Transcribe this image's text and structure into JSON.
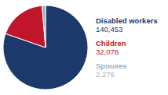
{
  "chart_data": {
    "type": "pie",
    "categories": [
      "Disabled workers",
      "Children",
      "Spouses"
    ],
    "values": [
      140453,
      32078,
      2276
    ],
    "value_labels": [
      "140,453",
      "32,078",
      "2,276"
    ],
    "colors": [
      "#1b3a6b",
      "#c0152a",
      "#9aafc0"
    ],
    "data_labels": true
  }
}
